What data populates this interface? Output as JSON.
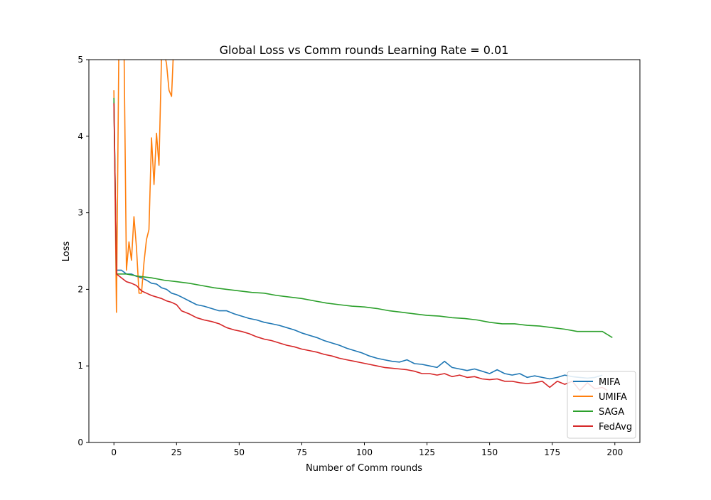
{
  "chart_data": {
    "type": "line",
    "title": "Global Loss vs Comm rounds Learning Rate = 0.01",
    "xlabel": "Number of Comm rounds",
    "ylabel": "Loss",
    "xlim": [
      -10,
      210
    ],
    "ylim": [
      0,
      5
    ],
    "xticks": [
      0,
      25,
      50,
      75,
      100,
      125,
      150,
      175,
      200
    ],
    "yticks": [
      0,
      1,
      2,
      3,
      4,
      5
    ],
    "grid": false,
    "legend_position": "lower-right",
    "series": [
      {
        "name": "MIFA",
        "color": "#1f77b4",
        "points": [
          [
            0,
            4.45
          ],
          [
            1,
            2.25
          ],
          [
            3,
            2.25
          ],
          [
            5,
            2.2
          ],
          [
            7,
            2.2
          ],
          [
            9,
            2.17
          ],
          [
            11,
            2.15
          ],
          [
            13,
            2.12
          ],
          [
            15,
            2.08
          ],
          [
            17,
            2.07
          ],
          [
            19,
            2.02
          ],
          [
            21,
            2.0
          ],
          [
            23,
            1.95
          ],
          [
            25,
            1.93
          ],
          [
            27,
            1.9
          ],
          [
            30,
            1.85
          ],
          [
            33,
            1.8
          ],
          [
            36,
            1.78
          ],
          [
            39,
            1.75
          ],
          [
            42,
            1.72
          ],
          [
            45,
            1.72
          ],
          [
            48,
            1.68
          ],
          [
            51,
            1.65
          ],
          [
            54,
            1.62
          ],
          [
            57,
            1.6
          ],
          [
            60,
            1.57
          ],
          [
            63,
            1.55
          ],
          [
            66,
            1.53
          ],
          [
            69,
            1.5
          ],
          [
            72,
            1.47
          ],
          [
            75,
            1.43
          ],
          [
            78,
            1.4
          ],
          [
            81,
            1.37
          ],
          [
            84,
            1.33
          ],
          [
            87,
            1.3
          ],
          [
            90,
            1.27
          ],
          [
            93,
            1.23
          ],
          [
            96,
            1.2
          ],
          [
            99,
            1.17
          ],
          [
            102,
            1.13
          ],
          [
            105,
            1.1
          ],
          [
            108,
            1.08
          ],
          [
            111,
            1.06
          ],
          [
            114,
            1.05
          ],
          [
            117,
            1.08
          ],
          [
            120,
            1.03
          ],
          [
            123,
            1.02
          ],
          [
            126,
            1.0
          ],
          [
            129,
            0.98
          ],
          [
            132,
            1.06
          ],
          [
            135,
            0.98
          ],
          [
            138,
            0.96
          ],
          [
            141,
            0.94
          ],
          [
            144,
            0.96
          ],
          [
            147,
            0.93
          ],
          [
            150,
            0.9
          ],
          [
            153,
            0.95
          ],
          [
            156,
            0.9
          ],
          [
            159,
            0.88
          ],
          [
            162,
            0.9
          ],
          [
            165,
            0.85
          ],
          [
            168,
            0.87
          ],
          [
            171,
            0.85
          ],
          [
            174,
            0.83
          ],
          [
            177,
            0.85
          ],
          [
            180,
            0.88
          ],
          [
            183,
            0.86
          ],
          [
            186,
            0.85
          ],
          [
            189,
            0.84
          ],
          [
            192,
            0.85
          ],
          [
            195,
            0.88
          ]
        ]
      },
      {
        "name": "UMIFA",
        "color": "#ff7f0e",
        "points": [
          [
            0,
            4.6
          ],
          [
            1,
            1.7
          ],
          [
            2,
            5.3
          ],
          [
            3,
            5.3
          ],
          [
            4,
            5.3
          ],
          [
            5,
            2.25
          ],
          [
            6,
            2.62
          ],
          [
            7,
            2.38
          ],
          [
            8,
            2.95
          ],
          [
            9,
            2.55
          ],
          [
            10,
            1.95
          ],
          [
            11,
            1.95
          ],
          [
            12,
            2.35
          ],
          [
            13,
            2.65
          ],
          [
            14,
            2.78
          ],
          [
            15,
            3.98
          ],
          [
            16,
            3.37
          ],
          [
            17,
            4.04
          ],
          [
            18,
            3.62
          ],
          [
            19,
            5.05
          ],
          [
            20,
            5.1
          ],
          [
            21,
            4.95
          ],
          [
            22,
            4.6
          ],
          [
            23,
            4.52
          ],
          [
            24,
            5.3
          ]
        ]
      },
      {
        "name": "SAGA",
        "color": "#2ca02c",
        "points": [
          [
            0,
            4.5
          ],
          [
            1,
            2.2
          ],
          [
            5,
            2.2
          ],
          [
            10,
            2.17
          ],
          [
            15,
            2.15
          ],
          [
            20,
            2.12
          ],
          [
            25,
            2.1
          ],
          [
            30,
            2.08
          ],
          [
            35,
            2.05
          ],
          [
            40,
            2.02
          ],
          [
            45,
            2.0
          ],
          [
            50,
            1.98
          ],
          [
            55,
            1.96
          ],
          [
            60,
            1.95
          ],
          [
            65,
            1.92
          ],
          [
            70,
            1.9
          ],
          [
            75,
            1.88
          ],
          [
            80,
            1.85
          ],
          [
            85,
            1.82
          ],
          [
            90,
            1.8
          ],
          [
            95,
            1.78
          ],
          [
            100,
            1.77
          ],
          [
            105,
            1.75
          ],
          [
            110,
            1.72
          ],
          [
            115,
            1.7
          ],
          [
            120,
            1.68
          ],
          [
            125,
            1.66
          ],
          [
            130,
            1.65
          ],
          [
            135,
            1.63
          ],
          [
            140,
            1.62
          ],
          [
            145,
            1.6
          ],
          [
            150,
            1.57
          ],
          [
            155,
            1.55
          ],
          [
            160,
            1.55
          ],
          [
            165,
            1.53
          ],
          [
            170,
            1.52
          ],
          [
            175,
            1.5
          ],
          [
            180,
            1.48
          ],
          [
            185,
            1.45
          ],
          [
            190,
            1.45
          ],
          [
            195,
            1.45
          ],
          [
            199,
            1.37
          ]
        ]
      },
      {
        "name": "FedAvg",
        "color": "#d62728",
        "points": [
          [
            0,
            4.43
          ],
          [
            1,
            2.2
          ],
          [
            3,
            2.15
          ],
          [
            5,
            2.1
          ],
          [
            7,
            2.08
          ],
          [
            9,
            2.05
          ],
          [
            11,
            1.98
          ],
          [
            13,
            1.95
          ],
          [
            15,
            1.92
          ],
          [
            17,
            1.9
          ],
          [
            19,
            1.88
          ],
          [
            21,
            1.85
          ],
          [
            23,
            1.83
          ],
          [
            25,
            1.8
          ],
          [
            27,
            1.72
          ],
          [
            30,
            1.68
          ],
          [
            33,
            1.63
          ],
          [
            36,
            1.6
          ],
          [
            39,
            1.58
          ],
          [
            42,
            1.55
          ],
          [
            45,
            1.5
          ],
          [
            48,
            1.47
          ],
          [
            51,
            1.45
          ],
          [
            54,
            1.42
          ],
          [
            57,
            1.38
          ],
          [
            60,
            1.35
          ],
          [
            63,
            1.33
          ],
          [
            66,
            1.3
          ],
          [
            69,
            1.27
          ],
          [
            72,
            1.25
          ],
          [
            75,
            1.22
          ],
          [
            78,
            1.2
          ],
          [
            81,
            1.18
          ],
          [
            84,
            1.15
          ],
          [
            87,
            1.13
          ],
          [
            90,
            1.1
          ],
          [
            93,
            1.08
          ],
          [
            96,
            1.06
          ],
          [
            99,
            1.04
          ],
          [
            102,
            1.02
          ],
          [
            105,
            1.0
          ],
          [
            108,
            0.98
          ],
          [
            111,
            0.97
          ],
          [
            114,
            0.96
          ],
          [
            117,
            0.95
          ],
          [
            120,
            0.93
          ],
          [
            123,
            0.9
          ],
          [
            126,
            0.9
          ],
          [
            129,
            0.88
          ],
          [
            132,
            0.9
          ],
          [
            135,
            0.86
          ],
          [
            138,
            0.88
          ],
          [
            141,
            0.85
          ],
          [
            144,
            0.86
          ],
          [
            147,
            0.83
          ],
          [
            150,
            0.82
          ],
          [
            153,
            0.83
          ],
          [
            156,
            0.8
          ],
          [
            159,
            0.8
          ],
          [
            162,
            0.78
          ],
          [
            165,
            0.77
          ],
          [
            168,
            0.78
          ],
          [
            171,
            0.8
          ],
          [
            174,
            0.72
          ],
          [
            177,
            0.8
          ],
          [
            180,
            0.76
          ],
          [
            183,
            0.8
          ],
          [
            186,
            0.68
          ],
          [
            189,
            0.78
          ],
          [
            192,
            0.7
          ],
          [
            195,
            0.72
          ],
          [
            197,
            0.68
          ]
        ]
      }
    ]
  }
}
